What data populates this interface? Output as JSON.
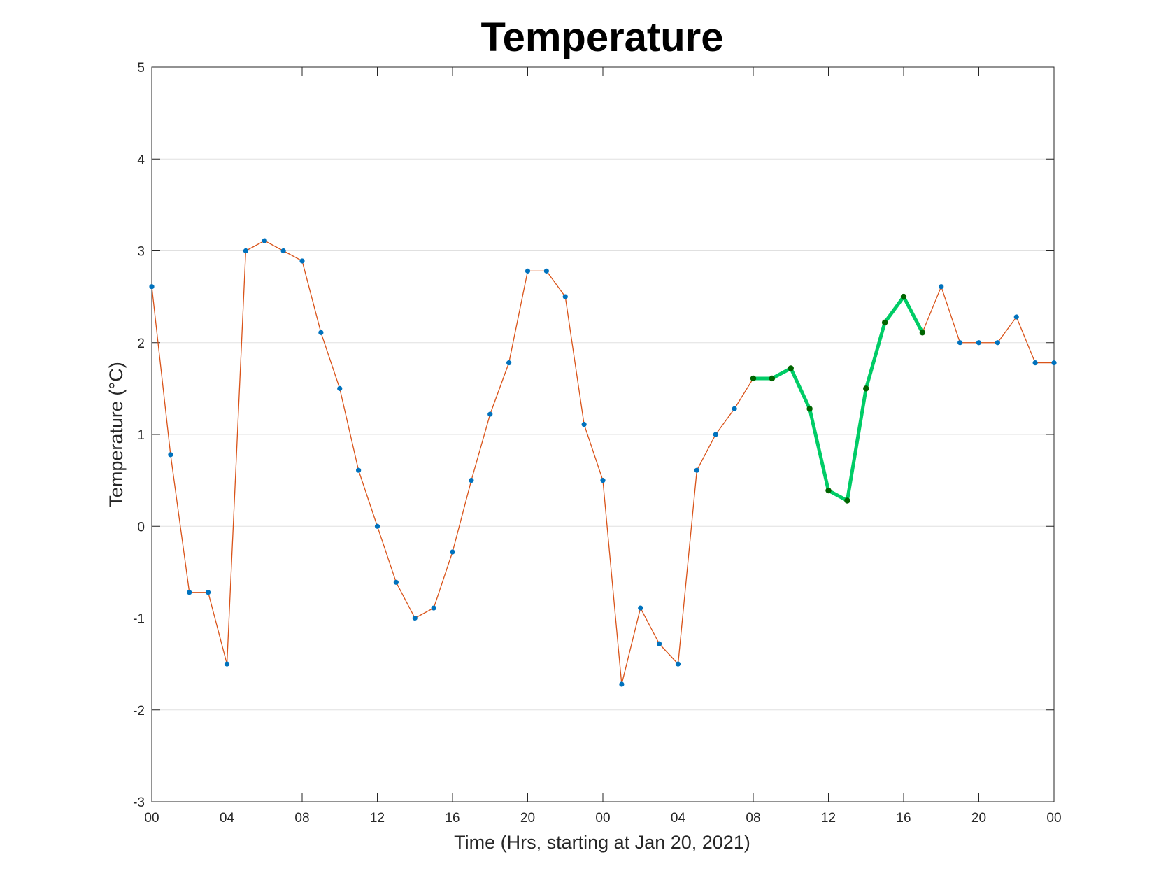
{
  "chart_data": {
    "type": "line",
    "title": "Temperature",
    "xlabel": "Time (Hrs, starting at Jan 20, 2021)",
    "ylabel": "Temperature (°C)",
    "ylim": [
      -3,
      5
    ],
    "xlim": [
      "2021-01-20 00:00",
      "2021-01-22 00:00"
    ],
    "yticks": [
      "-3",
      "-2",
      "-1",
      "0",
      "1",
      "2",
      "3",
      "4",
      "5"
    ],
    "xticks": [
      "00",
      "04",
      "08",
      "12",
      "16",
      "20",
      "00",
      "04",
      "08",
      "12",
      "16",
      "20",
      "00"
    ],
    "grid": "horizontal",
    "series": [
      {
        "color": "#D95319",
        "marker_color": "#0072BD",
        "start": "2021-01-20 00:00",
        "step": "1 hour",
        "values": [
          2.61,
          0.78,
          -0.72,
          -0.72,
          -1.5,
          3.0,
          3.11,
          3.0,
          2.89,
          2.11,
          1.5,
          0.61,
          0.0,
          -0.61,
          -1.0,
          -0.89,
          -0.28,
          0.5,
          1.22,
          1.78,
          2.78,
          2.78,
          2.5,
          1.11,
          0.5,
          -1.72,
          -0.89,
          -1.28,
          -1.5,
          0.61,
          1.0,
          1.28,
          1.61,
          1.61,
          1.72,
          1.28,
          0.39,
          0.28,
          1.5,
          2.22,
          2.5,
          2.11,
          2.61,
          2.0,
          2.0,
          2.0,
          2.28,
          1.78,
          1.78
        ]
      },
      {
        "color": "#00CC66",
        "marker_color": "#006400",
        "start": "2021-01-21 08:00",
        "step": "1 hour",
        "values": [
          1.61,
          1.61,
          1.72,
          1.28,
          0.39,
          0.28,
          1.5,
          2.22,
          2.5,
          2.11
        ]
      }
    ]
  }
}
